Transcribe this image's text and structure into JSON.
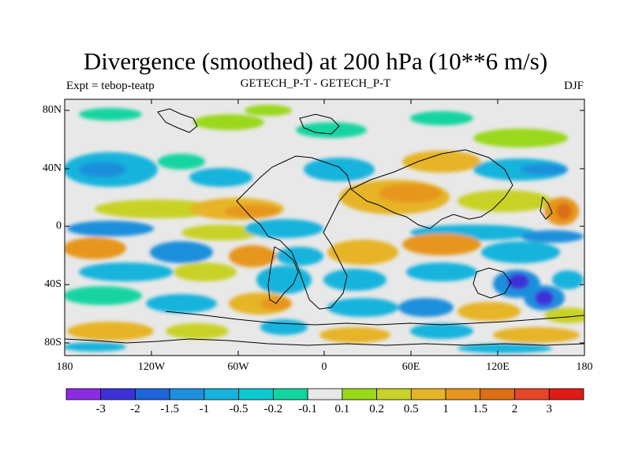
{
  "title": "Divergence (smoothed) at 200 hPa (10**6 m/s)",
  "left_label": "Expt = tebop-teatp",
  "center_label": "GETECH_P-T - GETECH_P-T",
  "right_label": "DJF",
  "y_ticks": [
    "80N",
    "40N",
    "0",
    "40S",
    "80S"
  ],
  "x_ticks": [
    "180",
    "120W",
    "60W",
    "0",
    "60E",
    "120E",
    "180"
  ],
  "colorbar": {
    "labels": [
      "-3",
      "-2",
      "-1.5",
      "-1",
      "-0.5",
      "-0.2",
      "-0.1",
      "0.1",
      "0.2",
      "0.5",
      "1",
      "1.5",
      "2",
      "3"
    ],
    "colors": [
      "#8a2be2",
      "#3c32d8",
      "#1c64d8",
      "#1e8fdc",
      "#16b3dc",
      "#0dc8d2",
      "#12d4a0",
      "#e8e8e8",
      "#9ad81a",
      "#c8d228",
      "#e6b428",
      "#e6961e",
      "#dc6e14",
      "#e64628",
      "#e01a14"
    ]
  },
  "map_colors": {
    "background": "#e8e8e8",
    "coast": "#000000"
  }
}
